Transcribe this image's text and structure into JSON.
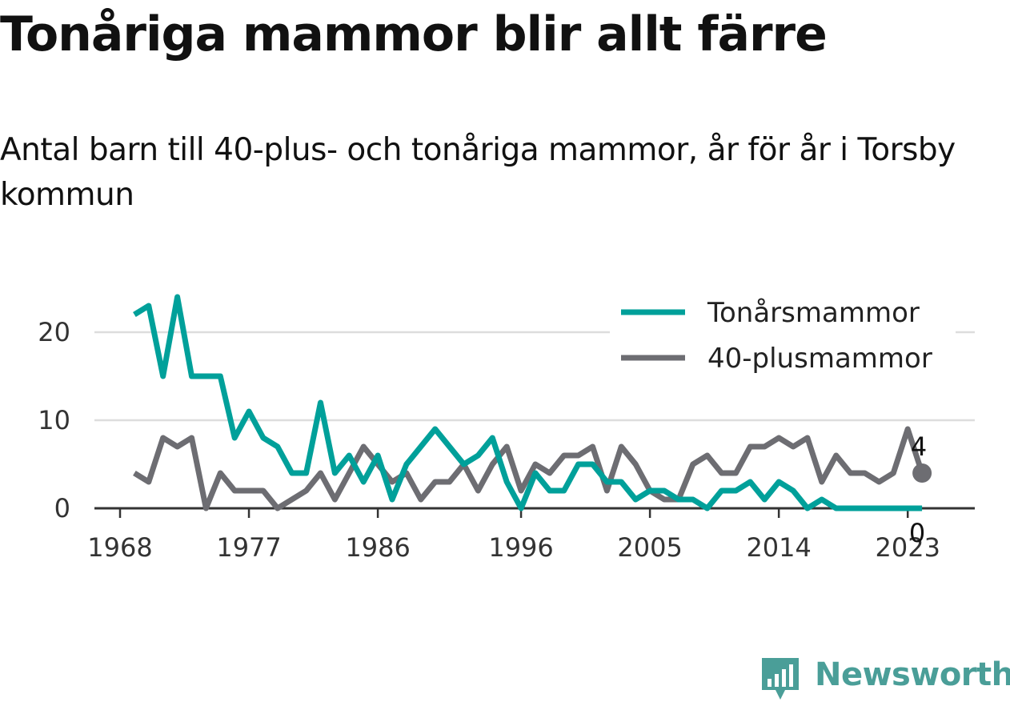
{
  "header": {
    "title": "Tonåriga mammor blir allt färre",
    "subtitle": "Antal barn till 40-plus- och tonåriga mammor, år för år i Torsby kommun"
  },
  "chart_data": {
    "type": "line",
    "title": "Tonåriga mammor blir allt färre",
    "subtitle": "Antal barn till 40-plus- och tonåriga mammor, år för år i Torsby kommun",
    "xlabel": "",
    "ylabel": "",
    "x": [
      1969,
      1970,
      1971,
      1972,
      1973,
      1974,
      1975,
      1976,
      1977,
      1978,
      1979,
      1980,
      1981,
      1982,
      1983,
      1984,
      1985,
      1986,
      1987,
      1988,
      1989,
      1990,
      1991,
      1992,
      1993,
      1994,
      1995,
      1996,
      1997,
      1998,
      1999,
      2000,
      2001,
      2002,
      2003,
      2004,
      2005,
      2006,
      2007,
      2008,
      2009,
      2010,
      2011,
      2012,
      2013,
      2014,
      2015,
      2016,
      2017,
      2018,
      2019,
      2020,
      2021,
      2022,
      2023,
      2024
    ],
    "xlim": [
      1968,
      2025
    ],
    "ylim": [
      0,
      25
    ],
    "x_ticks": [
      "1968",
      "1977",
      "1986",
      "1996",
      "2005",
      "2014",
      "2023"
    ],
    "x_tick_values": [
      1968,
      1977,
      1986,
      1996,
      2005,
      2014,
      2023
    ],
    "y_ticks": [
      "0",
      "10",
      "20"
    ],
    "y_tick_values": [
      0,
      10,
      20
    ],
    "grid": true,
    "legend_position": "top-right",
    "series": [
      {
        "name": "Tonårsmammor",
        "color": "#00a09a",
        "values": [
          22,
          23,
          15,
          24,
          15,
          15,
          15,
          8,
          11,
          8,
          7,
          4,
          4,
          12,
          4,
          6,
          3,
          6,
          1,
          5,
          7,
          9,
          7,
          5,
          6,
          8,
          3,
          0,
          4,
          2,
          2,
          5,
          5,
          3,
          3,
          1,
          2,
          2,
          1,
          1,
          0,
          2,
          2,
          3,
          1,
          3,
          2,
          0,
          1,
          0,
          0,
          0,
          0,
          0,
          0,
          0
        ],
        "end_label": "0"
      },
      {
        "name": "40-plusmammor",
        "color": "#6d6d72",
        "values": [
          4,
          3,
          8,
          7,
          8,
          0,
          4,
          2,
          2,
          2,
          0,
          1,
          2,
          4,
          1,
          4,
          7,
          5,
          3,
          4,
          1,
          3,
          3,
          5,
          2,
          5,
          7,
          2,
          5,
          4,
          6,
          6,
          7,
          2,
          7,
          5,
          2,
          1,
          1,
          5,
          6,
          4,
          4,
          7,
          7,
          8,
          7,
          8,
          3,
          6,
          4,
          4,
          3,
          4,
          9,
          4
        ],
        "end_label": "4"
      }
    ]
  },
  "brand": {
    "name": "Newsworthy",
    "color": "#4a9e98",
    "icon": "bar-chart-icon"
  }
}
